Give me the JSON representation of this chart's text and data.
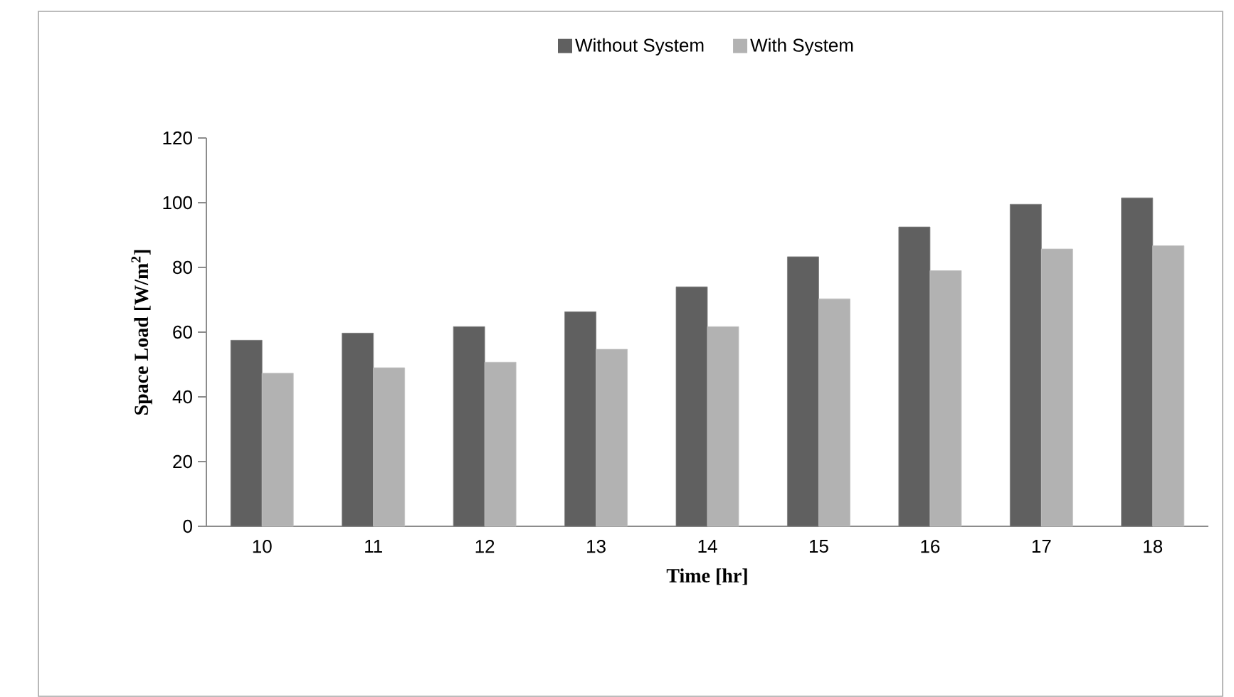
{
  "chart_data": {
    "type": "bar",
    "categories": [
      "10",
      "11",
      "12",
      "13",
      "14",
      "15",
      "16",
      "17",
      "18"
    ],
    "series": [
      {
        "name": "Without System",
        "color": "#606060",
        "values": [
          57.5,
          59.7,
          61.7,
          66.3,
          74,
          83.3,
          92.5,
          99.5,
          101.5
        ]
      },
      {
        "name": "With System",
        "color": "#b2b2b2",
        "values": [
          47.3,
          49,
          50.7,
          54.7,
          61.7,
          70.3,
          79,
          85.7,
          86.7
        ]
      }
    ],
    "xlabel": "Time [hr]",
    "ylabel": "Space Load [W/m$^{2}$]",
    "ylim": [
      0,
      120
    ],
    "yticks": [
      0,
      20,
      40,
      60,
      80,
      100,
      120
    ],
    "legend": "top",
    "grid": false
  }
}
